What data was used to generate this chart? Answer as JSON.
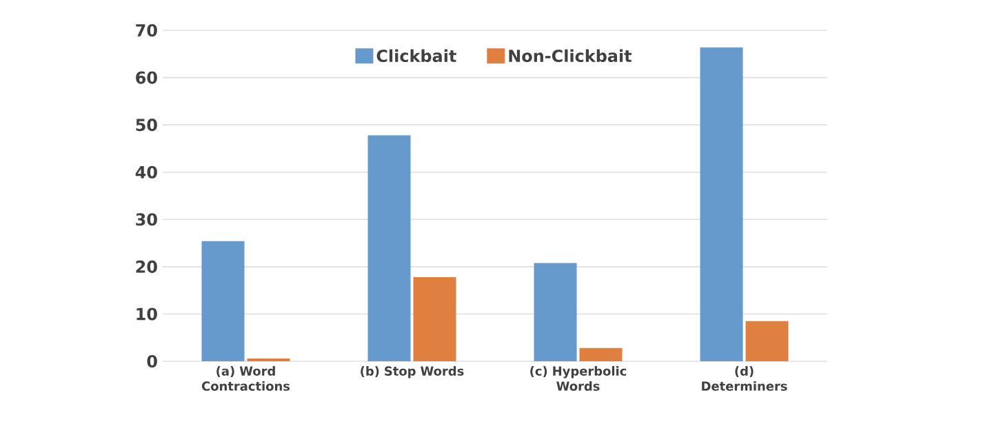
{
  "chart_data": {
    "type": "bar",
    "categories": [
      "(a) Word Contractions",
      "(b) Stop Words",
      "(c) Hyperbolic Words",
      "(d) Determiners"
    ],
    "series": [
      {
        "name": "Clickbait",
        "color": "#6699cc",
        "values": [
          25.4,
          47.8,
          20.8,
          66.4
        ]
      },
      {
        "name": "Non-Clickbait",
        "color": "#e08040",
        "values": [
          0.6,
          17.8,
          2.8,
          8.5
        ]
      }
    ],
    "ylim": [
      0,
      70
    ],
    "yticks": [
      0,
      10,
      20,
      30,
      40,
      50,
      60,
      70
    ],
    "grid": "y",
    "legend": "top"
  }
}
